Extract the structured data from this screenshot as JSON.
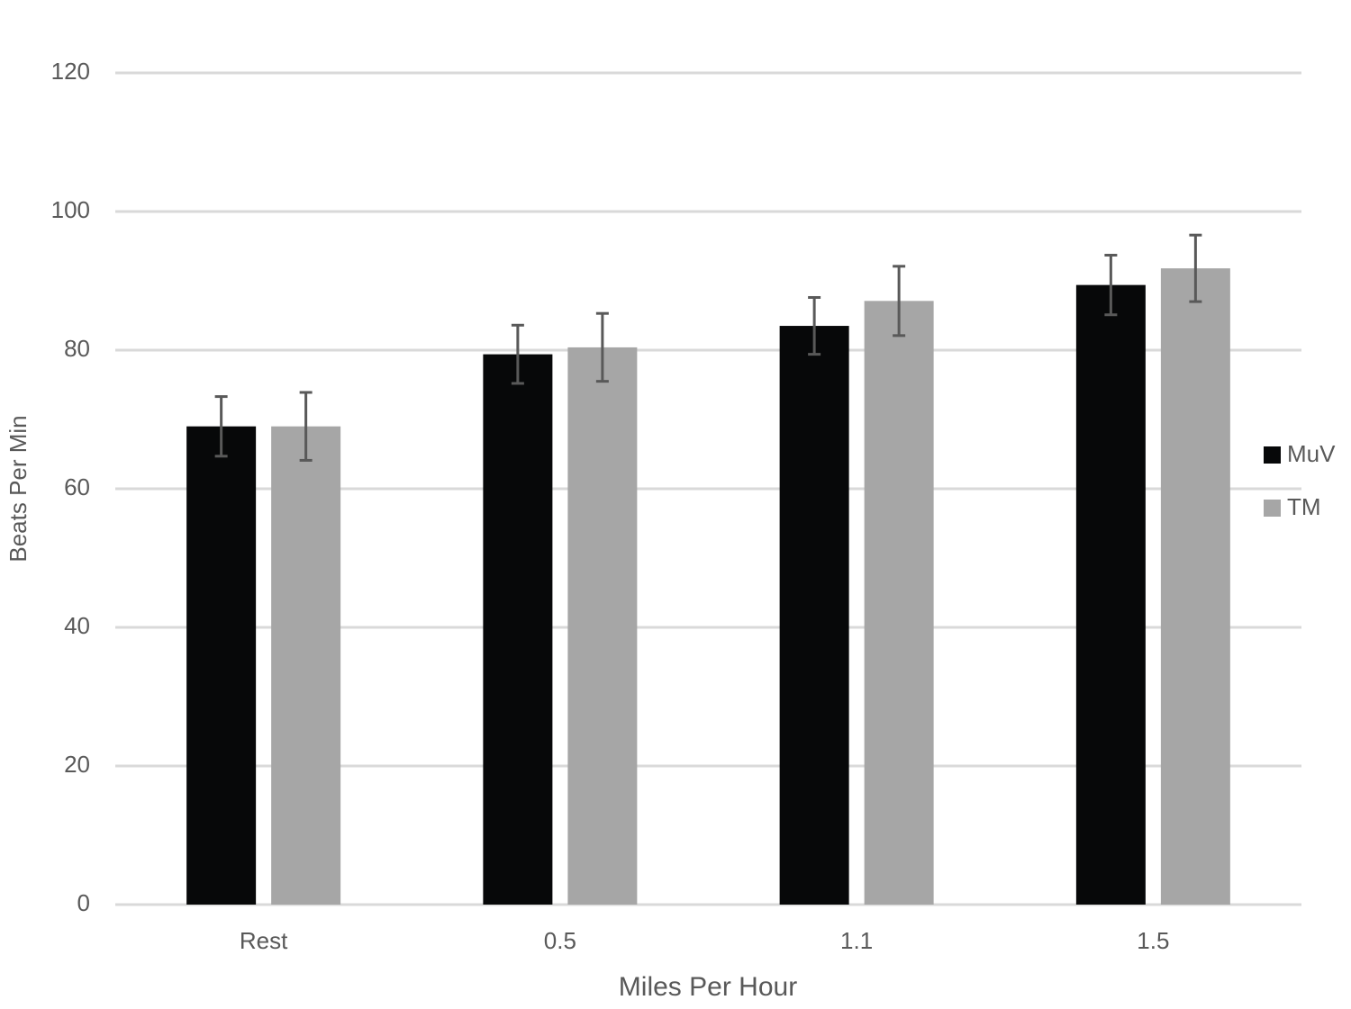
{
  "chart_data": {
    "type": "bar",
    "x_label": "Miles Per Hour",
    "y_label": "Beats Per Min",
    "categories": [
      "Rest",
      "0.5",
      "1.1",
      "1.5"
    ],
    "series": [
      {
        "name": "MuV",
        "color": "#070809",
        "values": [
          69,
          79.4,
          83.5,
          89.4
        ],
        "errors": [
          4.3,
          4.2,
          4.1,
          4.3
        ]
      },
      {
        "name": "TM",
        "color": "#a6a6a6",
        "values": [
          69,
          80.4,
          87.1,
          91.8
        ],
        "errors": [
          4.9,
          4.9,
          5,
          4.8
        ]
      }
    ],
    "ylim": [
      0,
      120
    ],
    "yticks": [
      0,
      20,
      40,
      60,
      80,
      100,
      120
    ],
    "grid": true,
    "legend": "right"
  }
}
